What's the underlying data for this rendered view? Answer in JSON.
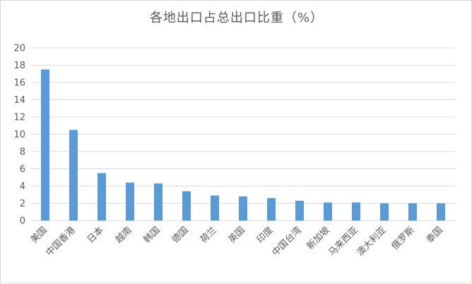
{
  "chart_data": {
    "type": "bar",
    "title": "各地出口占总出口比重（%）",
    "categories": [
      "美国",
      "中国香港",
      "日本",
      "越南",
      "韩国",
      "德国",
      "荷兰",
      "英国",
      "印度",
      "中国台湾",
      "新加坡",
      "马来西亚",
      "澳大利亚",
      "俄罗斯",
      "泰国"
    ],
    "values": [
      17.5,
      10.5,
      5.5,
      4.4,
      4.3,
      3.4,
      2.9,
      2.8,
      2.6,
      2.3,
      2.1,
      2.1,
      2.0,
      2.0,
      2.0
    ],
    "ylim": [
      0,
      20
    ],
    "yticks": [
      0,
      2,
      4,
      6,
      8,
      10,
      12,
      14,
      16,
      18,
      20
    ],
    "grid": true,
    "bar_color": "#5b9bd5",
    "grid_color": "#d9d9d9",
    "text_color": "#595959"
  }
}
